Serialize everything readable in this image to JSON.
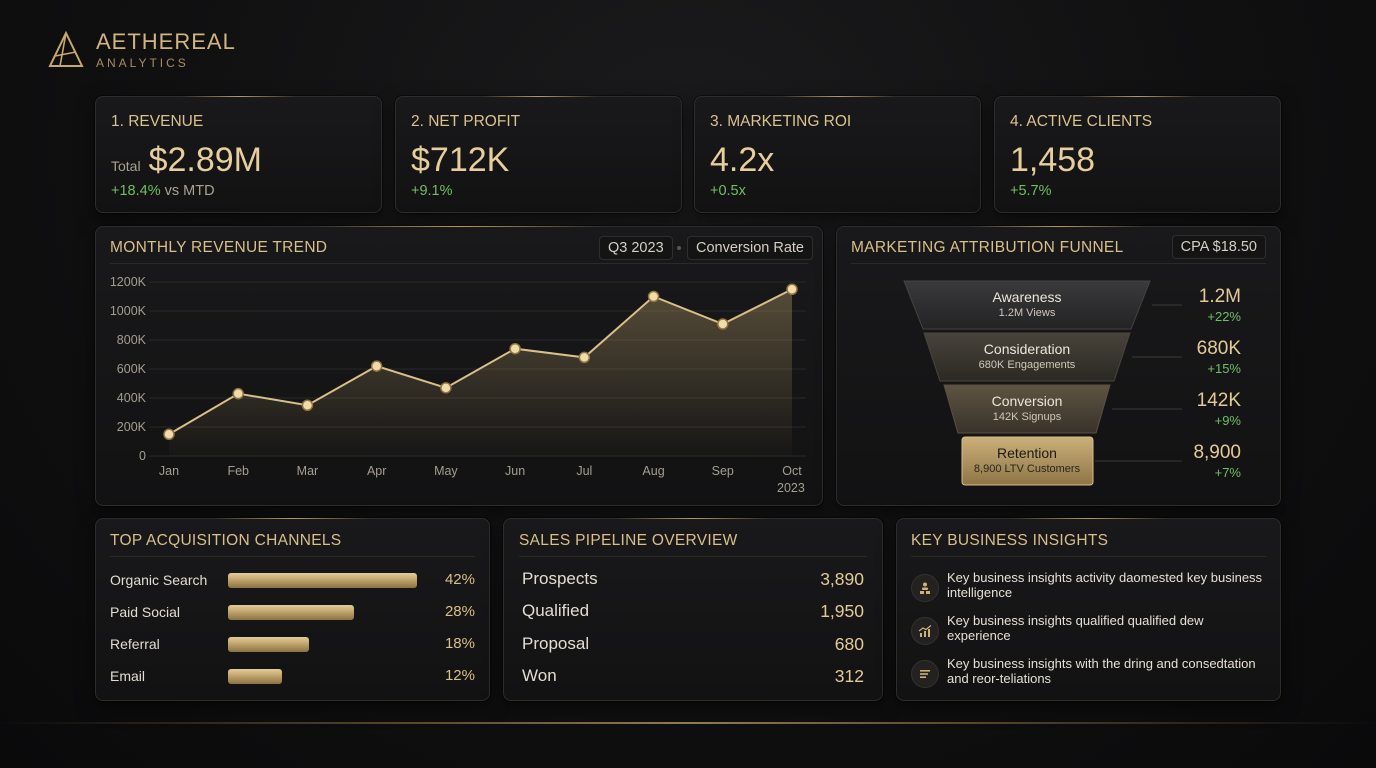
{
  "brand": {
    "name": "AETHEREAL",
    "sub": "ANALYTICS"
  },
  "kpis": [
    {
      "label": "1. REVENUE",
      "prefix": "Total",
      "value": "$2.89M",
      "delta": "+18.4%",
      "delta_suffix": "vs MTD"
    },
    {
      "label": "2. NET PROFIT",
      "value": "$712K",
      "delta": "+9.1%"
    },
    {
      "label": "3. MARKETING ROI",
      "value": "4.2x",
      "delta": "+0.5x"
    },
    {
      "label": "4. ACTIVE CLIENTS",
      "value": "1,458",
      "delta": "+5.7%"
    }
  ],
  "trend": {
    "title": "MONTHLY REVENUE TREND",
    "period": "Q3 2023",
    "metric": "Conversion Rate",
    "year": "2023"
  },
  "chart_data": {
    "type": "line",
    "categories": [
      "Jan",
      "Feb",
      "Mar",
      "Apr",
      "May",
      "Jun",
      "Jul",
      "Aug",
      "Sep",
      "Oct"
    ],
    "series": [
      {
        "values": [
          150,
          430,
          350,
          620,
          470,
          740,
          680,
          1100,
          910,
          1150
        ]
      }
    ],
    "y_ticks": [
      "0",
      "200K",
      "400K",
      "600K",
      "800K",
      "1000K",
      "1200K"
    ],
    "ylim": [
      0,
      1200
    ],
    "grid": true,
    "line_color": "#d9bf8a"
  },
  "funnel": {
    "title": "MARKETING ATTRIBUTION FUNNEL",
    "cpa": "CPA $18.50",
    "stages": [
      {
        "name": "Awareness",
        "sub": "1.2M Views",
        "value": "1.2M",
        "delta": "+22%"
      },
      {
        "name": "Consideration",
        "sub": "680K Engagements",
        "value": "680K",
        "delta": "+15%"
      },
      {
        "name": "Conversion",
        "sub": "142K Signups",
        "value": "142K",
        "delta": "+9%"
      },
      {
        "name": "Retention",
        "sub": "8,900 LTV Customers",
        "value": "8,900",
        "delta": "+7%"
      }
    ]
  },
  "channels": {
    "title": "TOP ACQUISITION CHANNELS",
    "items": [
      {
        "name": "Organic Search",
        "pct": "42%",
        "share": 42
      },
      {
        "name": "Paid Social",
        "pct": "28%",
        "share": 28
      },
      {
        "name": "Referral",
        "pct": "18%",
        "share": 18
      },
      {
        "name": "Email",
        "pct": "12%",
        "share": 12
      }
    ]
  },
  "pipeline": {
    "title": "SALES PIPELINE OVERVIEW",
    "items": [
      {
        "name": "Prospects",
        "value": "3,890"
      },
      {
        "name": "Qualified",
        "value": "1,950"
      },
      {
        "name": "Proposal",
        "value": "680"
      },
      {
        "name": "Won",
        "value": "312"
      }
    ]
  },
  "insights": {
    "title": "KEY BUSINESS INSIGHTS",
    "items": [
      {
        "icon": "people-icon",
        "text": "Key business insights activity daomested key business intelligence"
      },
      {
        "icon": "growth-chart-icon",
        "text": "Key business insights qualified qualified dew experience"
      },
      {
        "icon": "list-icon",
        "text": "Key business insights with the dring and consedtation and reor-teliations"
      }
    ]
  },
  "colors": {
    "accent": "#d9bf8a",
    "positive": "#6fbf63",
    "background": "#111112"
  }
}
